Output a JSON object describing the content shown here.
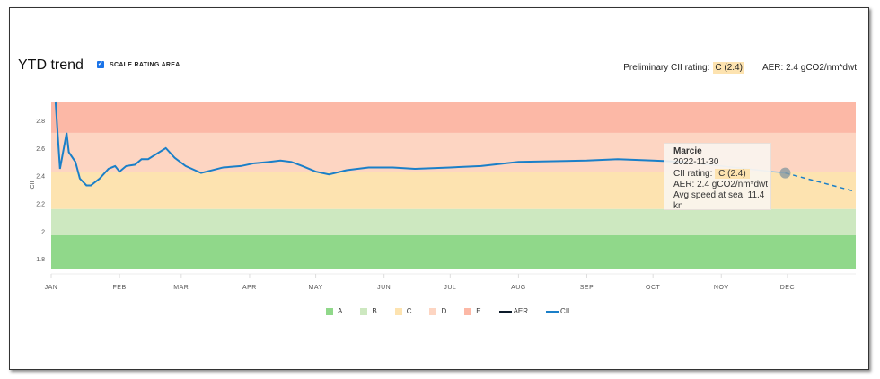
{
  "header": {
    "title": "YTD trend",
    "scale_label": "SCALE RATING AREA",
    "scale_checked": true,
    "rating_label": "Preliminary CII rating:",
    "rating_value": "C (2.4)",
    "aer_text": "AER: 2.4 gCO2/nm*dwt"
  },
  "tooltip": {
    "name": "Marcie",
    "date": "2022-11-30",
    "rating_label": "CII rating:",
    "rating_value": "C (2.4)",
    "aer": "AER: 2.4 gCO2/nm*dwt",
    "speed": "Avg speed at sea: 11.4 kn"
  },
  "colors": {
    "A": "#90d88a",
    "B": "#cde8c0",
    "C": "#fde3b0",
    "D": "#fdd5c2",
    "E": "#fcb8a6",
    "AER": "#0d1b2a",
    "CII": "#1a7fc8"
  },
  "chart_data": {
    "type": "line",
    "ylabel": "CII",
    "ylim": [
      1.73,
      2.93
    ],
    "yticks": [
      "1.8",
      "2",
      "2.2",
      "2.4",
      "2.6",
      "2.8"
    ],
    "xticks": [
      "JAN",
      "FEB",
      "MAR",
      "APR",
      "MAY",
      "JUN",
      "JUL",
      "AUG",
      "SEP",
      "OCT",
      "NOV",
      "DEC"
    ],
    "bands": [
      {
        "name": "A",
        "from": 1.73,
        "to": 1.97
      },
      {
        "name": "B",
        "from": 1.97,
        "to": 2.16
      },
      {
        "name": "C",
        "from": 2.16,
        "to": 2.43
      },
      {
        "name": "D",
        "from": 2.43,
        "to": 2.71
      },
      {
        "name": "E",
        "from": 2.71,
        "to": 2.93
      }
    ],
    "legend": [
      "A",
      "B",
      "C",
      "D",
      "E",
      "AER",
      "CII"
    ],
    "series": [
      {
        "name": "CII",
        "x": [
          "2022-01-03",
          "2022-01-05",
          "2022-01-08",
          "2022-01-09",
          "2022-01-12",
          "2022-01-14",
          "2022-01-17",
          "2022-01-19",
          "2022-01-23",
          "2022-01-27",
          "2022-01-30",
          "2022-02-01",
          "2022-02-04",
          "2022-02-08",
          "2022-02-11",
          "2022-02-14",
          "2022-02-22",
          "2022-02-26",
          "2022-03-03",
          "2022-03-10",
          "2022-03-15",
          "2022-03-20",
          "2022-03-28",
          "2022-04-03",
          "2022-04-10",
          "2022-04-15",
          "2022-04-20",
          "2022-04-25",
          "2022-05-01",
          "2022-05-07",
          "2022-05-15",
          "2022-05-25",
          "2022-06-05",
          "2022-06-15",
          "2022-07-01",
          "2022-07-15",
          "2022-08-01",
          "2022-09-01",
          "2022-09-15",
          "2022-10-01",
          "2022-10-15",
          "2022-11-30"
        ],
        "values": [
          2.95,
          2.45,
          2.71,
          2.57,
          2.5,
          2.38,
          2.33,
          2.33,
          2.38,
          2.45,
          2.47,
          2.43,
          2.47,
          2.48,
          2.52,
          2.52,
          2.6,
          2.53,
          2.47,
          2.42,
          2.44,
          2.46,
          2.47,
          2.49,
          2.5,
          2.51,
          2.5,
          2.47,
          2.43,
          2.41,
          2.44,
          2.46,
          2.46,
          2.45,
          2.46,
          2.47,
          2.5,
          2.51,
          2.52,
          2.51,
          2.5,
          2.42
        ]
      },
      {
        "name": "CII forecast",
        "x": [
          "2022-11-30",
          "2022-12-31"
        ],
        "values": [
          2.42,
          2.29
        ]
      }
    ]
  }
}
